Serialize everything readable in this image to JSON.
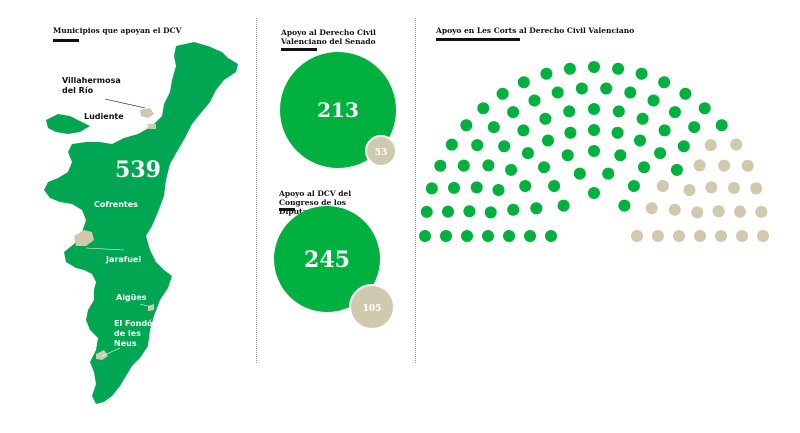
{
  "colors": {
    "support": "#00b140",
    "map": "#00a651",
    "other": "#cfc9ad",
    "text": "#111111"
  },
  "map": {
    "title": "Municipios que apoyan el DCV",
    "total_label": "539",
    "places": [
      "Villahermosa del Río",
      "Ludiente",
      "Cofrentes",
      "Jarafuel",
      "Aigües",
      "El Fondó de les Neus"
    ]
  },
  "chart_data": [
    {
      "type": "bubble",
      "title": "Apoyo al Derecho Civil Valenciano del Senado",
      "series": [
        {
          "value": 213,
          "color": "#00b140"
        },
        {
          "value": 53,
          "color": "#cfc9ad"
        }
      ]
    },
    {
      "type": "bubble",
      "title": "Apoyo al DCV del Congreso de los Diputados",
      "series": [
        {
          "value": 245,
          "color": "#00b140"
        },
        {
          "value": 105,
          "color": "#cfc9ad"
        }
      ]
    },
    {
      "type": "parliament",
      "title": "Apoyo en Les Corts al Derecho Civil Valenciano",
      "series": [
        {
          "value": 76,
          "color": "#00b140"
        },
        {
          "value": 23,
          "color": "#cfc9ad"
        }
      ]
    }
  ]
}
